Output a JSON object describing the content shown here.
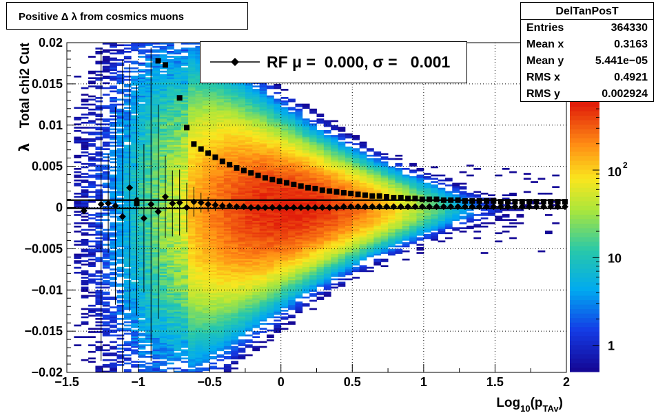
{
  "title": "Positive Δ λ from cosmics muons",
  "stats": {
    "name": "DelTanPosT",
    "rows": [
      {
        "key": "Entries",
        "value": "364330"
      },
      {
        "key": "Mean x",
        "value": "0.3163"
      },
      {
        "key": "Mean y",
        "value": "5.441e−05"
      },
      {
        "key": "RMS x",
        "value": "0.4921"
      },
      {
        "key": "RMS y",
        "value": "0.002924"
      }
    ]
  },
  "legend": {
    "text": "RF μ =  0.000, σ =   0.001"
  },
  "colorbar": {
    "labels": [
      "10",
      "10",
      "1"
    ],
    "exponent": "2",
    "scale": "log",
    "zmin": 0.5,
    "zmax": 600
  },
  "colors": {
    "frame": "#000000",
    "grid": "#000000"
  },
  "chart_data": {
    "type": "heatmap",
    "xlabel": "Log",
    "xlabel_sub": "10",
    "xlabel_rest": "(p",
    "xlabel_sub2": "TAv",
    "xlabel_end": ")",
    "ylabel_main": "Total chi2 Cut",
    "ylabel_symbol": "λ",
    "xlim": [
      -1.5,
      2
    ],
    "ylim": [
      -0.02,
      0.02
    ],
    "grid": true,
    "xticks": [
      -1.5,
      -1,
      -0.5,
      0,
      0.5,
      1,
      1.5,
      2
    ],
    "xtick_labels": [
      "−1.5",
      "−1",
      "−0.5",
      "0",
      "0.5",
      "1",
      "1.5",
      "2"
    ],
    "yticks": [
      -0.02,
      -0.015,
      -0.01,
      -0.005,
      0,
      0.005,
      0.01,
      0.015,
      0.02
    ],
    "ytick_labels": [
      "−0.02",
      "−0.015",
      "−0.01",
      "−0.005",
      "0",
      "0.005",
      "0.01",
      "0.015",
      "0.02"
    ],
    "hlines": [
      0.0009,
      -0.0001
    ],
    "mean_series": {
      "name": "RF",
      "marker": "diamond",
      "x": [
        -1.38,
        -1.26,
        -1.21,
        -1.16,
        -1.11,
        -1.06,
        -1.01,
        -0.96,
        -0.91,
        -0.86,
        -0.81,
        -0.76,
        -0.71,
        -0.66,
        -0.61,
        -0.56,
        -0.51,
        -0.46,
        -0.41,
        -0.36,
        -0.31,
        -0.26,
        -0.21,
        -0.16,
        -0.11,
        -0.06,
        -0.01,
        0.04,
        0.09,
        0.14,
        0.19,
        0.24,
        0.29,
        0.34,
        0.39,
        0.44,
        0.49,
        0.54,
        0.59,
        0.64,
        0.69,
        0.74,
        0.79,
        0.84,
        0.89,
        0.94,
        0.99,
        1.04,
        1.09,
        1.14,
        1.19,
        1.24,
        1.29,
        1.34,
        1.39,
        1.44,
        1.49,
        1.54,
        1.59,
        1.64,
        1.69,
        1.74,
        1.79,
        1.84,
        1.89,
        1.94,
        1.99
      ],
      "y": [
        -0.0004,
        0.0004,
        0.0005,
        0.0002,
        -0.0011,
        0.0024,
        0.0009,
        -0.0013,
        0.0004,
        -0.0005,
        0.0013,
        0.0005,
        0.0006,
        0.0,
        0.0007,
        0.0006,
        0.0004,
        0.0003,
        0.0002,
        0.0002,
        0.0001,
        0.0001,
        0.0,
        0.0,
        0.0,
        0.0,
        0.0,
        0.0,
        0.0,
        0.0,
        0.0,
        0.0,
        0.0,
        0.0,
        0.0,
        0.0001,
        0.0001,
        0.0001,
        0.0001,
        0.0001,
        0.0001,
        0.0001,
        0.0001,
        0.0001,
        0.0001,
        0.0001,
        0.0001,
        0.0001,
        0.0001,
        0.0001,
        0.0001,
        0.0001,
        0.0001,
        0.0001,
        0.0001,
        0.0001,
        0.0001,
        0.0001,
        0.0001,
        0.0001,
        0.0001,
        0.0001,
        0.0001,
        0.0001,
        0.0001,
        0.0001,
        0.0001
      ],
      "err": [
        0.0,
        0.019,
        0.006,
        0.012,
        0.019,
        0.015,
        0.014,
        0.009,
        0.019,
        0.013,
        0.005,
        0.004,
        0.004,
        0.003,
        0.0018,
        0.0012,
        0.0009,
        0.0007,
        0.0005,
        0.0004,
        0.0003,
        0.0002,
        0.0002,
        0.0002,
        0.0001,
        0.0001,
        0.0001,
        0.0001,
        0.0001,
        0.0001,
        0.0001,
        0.0001,
        0.0001,
        0.0001,
        0.0001,
        0.0001,
        0.0001,
        0.0001,
        0.0001,
        0.0001,
        0.0001,
        0.0001,
        0.0001,
        0.0001,
        0.0001,
        0.0001,
        0.0001,
        0.0001,
        0.0001,
        0.0001,
        0.0001,
        0.0001,
        0.0001,
        0.0001,
        0.0001,
        0.0001,
        0.0001,
        0.0001,
        0.0001,
        0.0001,
        0.0001,
        0.0001,
        0.0001,
        0.0001,
        0.0001,
        0.0001,
        0.0001
      ]
    },
    "sigma_series": {
      "marker": "square",
      "x": [
        -1.01,
        -0.86,
        -0.81,
        -0.71,
        -0.66,
        -0.61,
        -0.56,
        -0.51,
        -0.46,
        -0.41,
        -0.36,
        -0.31,
        -0.26,
        -0.21,
        -0.16,
        -0.11,
        -0.06,
        -0.01,
        0.04,
        0.09,
        0.14,
        0.19,
        0.24,
        0.29,
        0.34,
        0.39,
        0.44,
        0.49,
        0.54,
        0.59,
        0.64,
        0.69,
        0.74,
        0.79,
        0.84,
        0.89,
        0.94,
        0.99,
        1.04,
        1.09,
        1.14,
        1.19,
        1.24,
        1.29,
        1.34,
        1.39,
        1.44,
        1.49,
        1.54,
        1.59,
        1.64,
        1.69,
        1.74,
        1.79,
        1.84,
        1.89,
        1.94,
        1.99
      ],
      "y": [
        0.0005,
        0.0178,
        0.0173,
        0.0133,
        0.0097,
        0.0077,
        0.0071,
        0.0066,
        0.0061,
        0.0056,
        0.0052,
        0.0048,
        0.0045,
        0.0042,
        0.0039,
        0.0036,
        0.0034,
        0.0032,
        0.003,
        0.0028,
        0.0026,
        0.0024,
        0.0023,
        0.0021,
        0.002,
        0.0019,
        0.0018,
        0.0017,
        0.0016,
        0.0015,
        0.0014,
        0.0014,
        0.0013,
        0.0012,
        0.0012,
        0.0011,
        0.0011,
        0.001,
        0.001,
        0.001,
        0.0009,
        0.0009,
        0.0009,
        0.0008,
        0.0008,
        0.0008,
        0.0008,
        0.0008,
        0.0007,
        0.0007,
        0.0007,
        0.0007,
        0.0007,
        0.0007,
        0.0007,
        0.0007,
        0.0007,
        0.0007
      ]
    },
    "density_model": {
      "description": "counts per bin",
      "peak_x": 0.05,
      "peak_count": 600
    }
  }
}
